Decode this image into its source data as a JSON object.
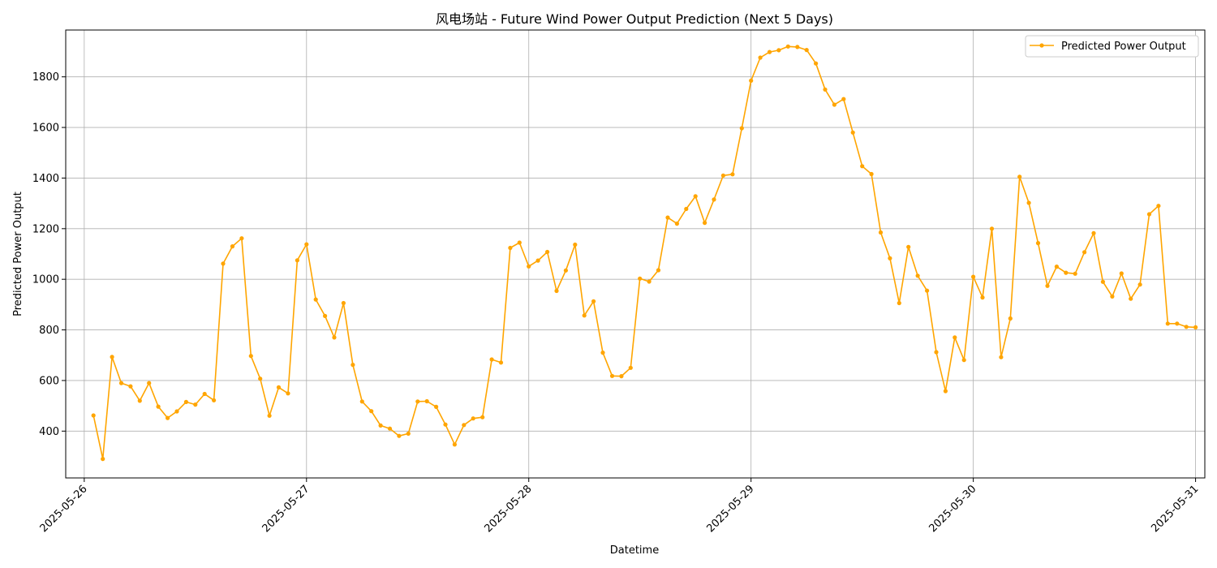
{
  "chart_data": {
    "type": "line",
    "title": "风电场站 - Future Wind Power Output Prediction (Next 5 Days)",
    "xlabel": "Datetime",
    "ylabel": "Predicted Power Output",
    "x_start": "2025-05-26 01:00",
    "x_step_hours": 1,
    "xlim": [
      "2025-05-25 22:00",
      "2025-05-31 01:00"
    ],
    "ylim": [
      215,
      1985
    ],
    "xticks": [
      "2025-05-26",
      "2025-05-27",
      "2025-05-28",
      "2025-05-29",
      "2025-05-30",
      "2025-05-31"
    ],
    "yticks": [
      400,
      600,
      800,
      1000,
      1200,
      1400,
      1600,
      1800
    ],
    "grid": true,
    "legend_position": "top-right",
    "colors": {
      "series": "#FFA500",
      "grid": "#b0b0b0",
      "axis": "#000000"
    },
    "series": [
      {
        "name": "Predicted Power Output",
        "values": [
          462,
          290,
          693,
          590,
          577,
          520,
          590,
          497,
          452,
          478,
          515,
          505,
          547,
          522,
          1062,
          1130,
          1162,
          697,
          607,
          461,
          573,
          549,
          1075,
          1138,
          920,
          855,
          770,
          906,
          662,
          517,
          479,
          422,
          410,
          381,
          390,
          517,
          518,
          496,
          426,
          347,
          424,
          450,
          455,
          683,
          671,
          1124,
          1145,
          1051,
          1074,
          1108,
          954,
          1035,
          1137,
          857,
          913,
          710,
          618,
          617,
          650,
          1003,
          991,
          1036,
          1244,
          1220,
          1278,
          1328,
          1223,
          1315,
          1410,
          1415,
          1597,
          1785,
          1876,
          1898,
          1905,
          1920,
          1918,
          1906,
          1853,
          1750,
          1690,
          1712,
          1580,
          1447,
          1416,
          1185,
          1083,
          906,
          1128,
          1014,
          955,
          712,
          558,
          770,
          681,
          1010,
          928,
          1200,
          692,
          845,
          1405,
          1302,
          1143,
          974,
          1050,
          1026,
          1022,
          1107,
          1182,
          990,
          932,
          1023,
          923,
          979,
          1257,
          1290,
          825,
          825,
          812,
          810
        ]
      }
    ]
  }
}
